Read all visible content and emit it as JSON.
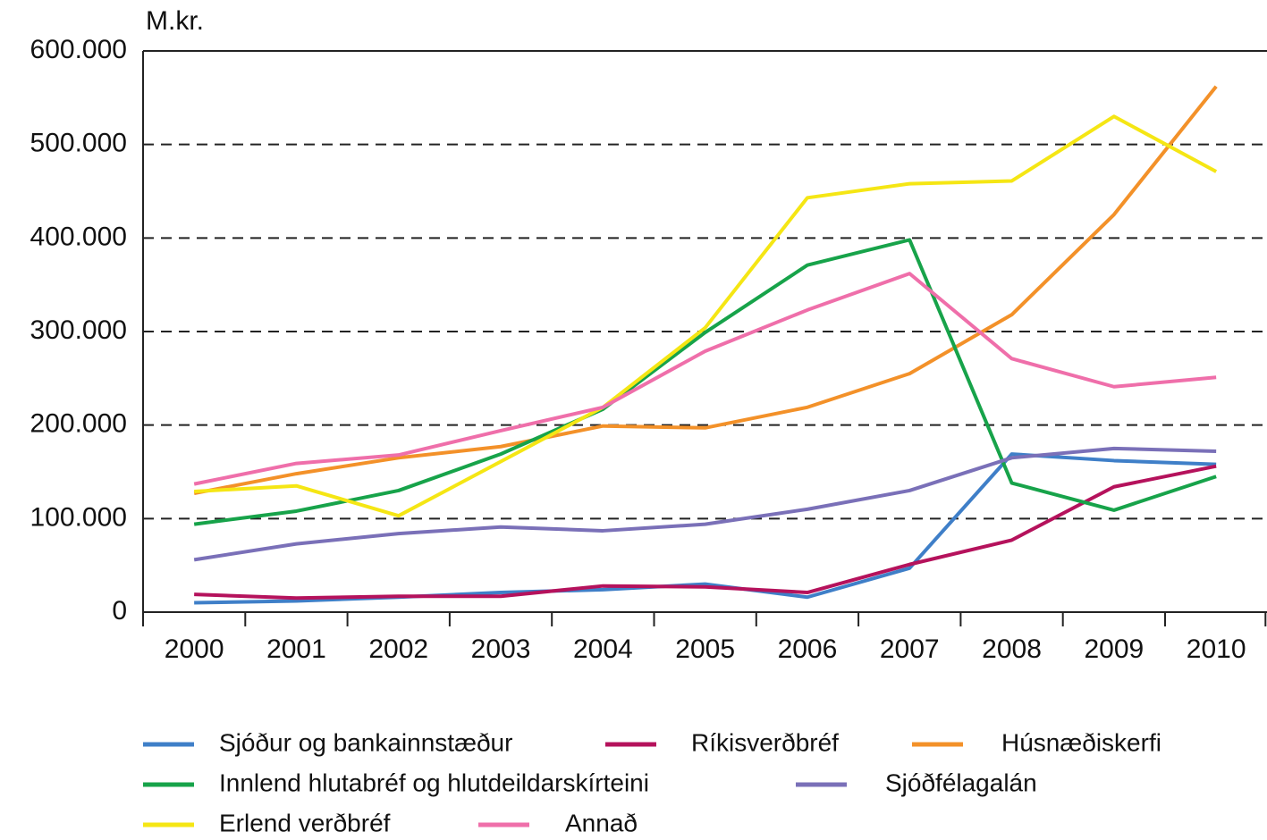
{
  "chart_data": {
    "type": "line",
    "y_label": "M.kr.",
    "categories": [
      "2000",
      "2001",
      "2002",
      "2003",
      "2004",
      "2005",
      "2006",
      "2007",
      "2008",
      "2009",
      "2010"
    ],
    "series": [
      {
        "name": "Sjóður og bankainnstæður",
        "color": "#3f7fc8",
        "values": [
          10000,
          12000,
          16000,
          21000,
          24000,
          30000,
          16000,
          47000,
          169000,
          162000,
          158000
        ]
      },
      {
        "name": "Ríkisverðbréf",
        "color": "#b5125c",
        "values": [
          19000,
          15000,
          17000,
          17000,
          28000,
          27000,
          21000,
          51000,
          77000,
          134000,
          156000
        ]
      },
      {
        "name": "Húsnæðiskerfi",
        "color": "#f39129",
        "values": [
          127000,
          148000,
          165000,
          177000,
          199000,
          197000,
          219000,
          255000,
          318000,
          425000,
          562000
        ]
      },
      {
        "name": "Innlend hlutabréf og hlutdeildarskírteini",
        "color": "#17a34a",
        "values": [
          94000,
          108000,
          130000,
          169000,
          217000,
          299000,
          371000,
          398000,
          138000,
          109000,
          145000
        ]
      },
      {
        "name": "Sjóðfélagalán",
        "color": "#7a70b8",
        "values": [
          56000,
          73000,
          84000,
          91000,
          87000,
          94000,
          110000,
          130000,
          165000,
          175000,
          172000
        ]
      },
      {
        "name": "Erlend verðbréf",
        "color": "#f5e614",
        "values": [
          129000,
          135000,
          103000,
          161000,
          219000,
          304000,
          443000,
          458000,
          461000,
          530000,
          471000
        ]
      },
      {
        "name": "Annað",
        "color": "#ef6faa",
        "values": [
          137000,
          159000,
          168000,
          194000,
          219000,
          279000,
          323000,
          362000,
          271000,
          241000,
          251000
        ]
      }
    ],
    "ylim": [
      0,
      600000
    ],
    "yticks": [
      0,
      {
        "value": 100000,
        "label": "100.000"
      },
      {
        "value": 200000,
        "label": "200.000"
      },
      {
        "value": 300000,
        "label": "300.000"
      },
      {
        "value": 400000,
        "label": "400.000"
      },
      {
        "value": 500000,
        "label": "500.000"
      },
      {
        "value": 600000,
        "label": "600.000"
      }
    ],
    "grid": true
  }
}
